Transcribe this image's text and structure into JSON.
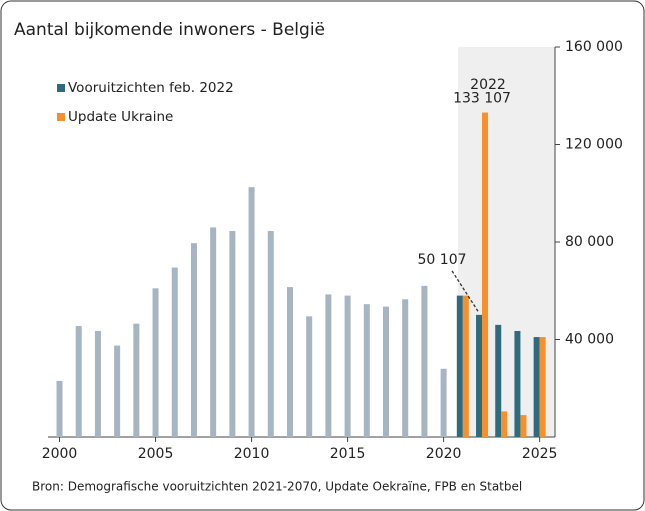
{
  "chart_data": {
    "type": "bar",
    "title": "Aantal bijkomende inwoners - België",
    "source": "Bron: Demografische vooruitzichten 2021-2070, Update Oekraïne, FPB en Statbel",
    "x": [
      2000,
      2001,
      2002,
      2003,
      2004,
      2005,
      2006,
      2007,
      2008,
      2009,
      2010,
      2011,
      2012,
      2013,
      2014,
      2015,
      2016,
      2017,
      2018,
      2019,
      2020,
      2021,
      2022,
      2023,
      2024,
      2025
    ],
    "series": [
      {
        "color": "#a7b4c2",
        "values": [
          23000,
          45500,
          43500,
          37500,
          46500,
          61000,
          69500,
          79500,
          86000,
          84500,
          102500,
          84500,
          61500,
          49500,
          58500,
          58000,
          54500,
          53500,
          56500,
          62000,
          28000,
          null,
          null,
          null,
          null,
          null
        ]
      },
      {
        "name": "Vooruitzichten feb. 2022",
        "color": "#2f6b7f",
        "values": [
          null,
          null,
          null,
          null,
          null,
          null,
          null,
          null,
          null,
          null,
          null,
          null,
          null,
          null,
          null,
          null,
          null,
          null,
          null,
          null,
          null,
          58000,
          50107,
          46000,
          43500,
          41000
        ],
        "value_labels": [
          null,
          null,
          null,
          null,
          null,
          null,
          null,
          null,
          null,
          null,
          null,
          null,
          null,
          null,
          null,
          null,
          null,
          null,
          null,
          null,
          null,
          null,
          "50 107",
          null,
          null,
          null
        ]
      },
      {
        "name": "Update Ukraine",
        "color": "#f7902a",
        "values": [
          null,
          null,
          null,
          null,
          null,
          null,
          null,
          null,
          null,
          null,
          null,
          null,
          null,
          null,
          null,
          null,
          null,
          null,
          null,
          null,
          null,
          58000,
          133107,
          10500,
          9000,
          41000
        ],
        "value_labels": [
          null,
          null,
          null,
          null,
          null,
          null,
          null,
          null,
          null,
          null,
          null,
          null,
          null,
          null,
          null,
          null,
          null,
          null,
          null,
          null,
          null,
          null,
          "133 107",
          null,
          null,
          null
        ]
      }
    ],
    "annotations": [
      {
        "text": "2022"
      }
    ],
    "xlim": [
      1999.4,
      2025.8
    ],
    "xticks": [
      2000,
      2005,
      2010,
      2015,
      2020,
      2025
    ],
    "ylim": [
      0,
      160000
    ],
    "yticks": [
      {
        "value": 40000,
        "label": "40 000"
      },
      {
        "value": 80000,
        "label": "80 000"
      },
      {
        "value": 120000,
        "label": "120 000"
      },
      {
        "value": 160000,
        "label": "160 000"
      }
    ],
    "legend": "top-left",
    "grid": false
  }
}
